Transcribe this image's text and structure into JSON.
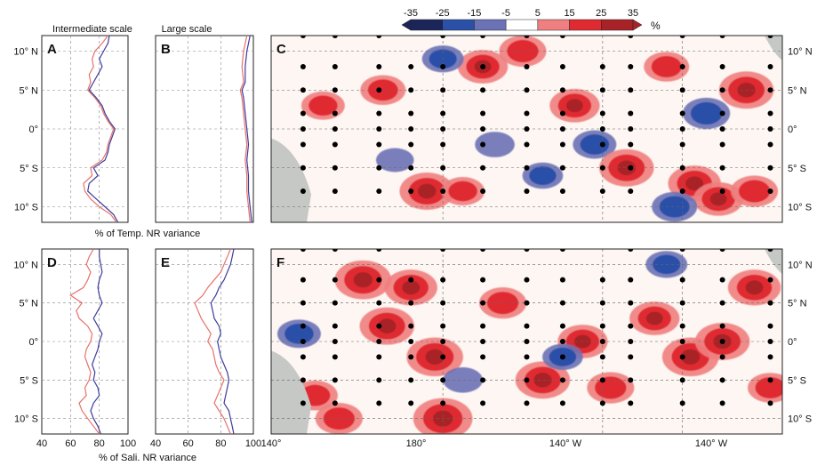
{
  "colorbar": {
    "ticks": [
      "-35",
      "-25",
      "-15",
      "-5",
      "5",
      "15",
      "25",
      "35"
    ],
    "unit": "%",
    "colors": [
      "#1c2559",
      "#2b50a8",
      "#6b72b5",
      "#ffffff",
      "#ef7f80",
      "#e02a32",
      "#a82228"
    ]
  },
  "colors": {
    "land": "#c6c8c6",
    "map_bg": "#fdf6f2",
    "intermediate_line_red": "#e8706a",
    "intermediate_line_blue": "#3c3c9c"
  },
  "titles": {
    "intermediate": "Intermediate scale",
    "large": "Large scale"
  },
  "panel_letters": {
    "A": "A",
    "B": "B",
    "C": "C",
    "D": "D",
    "E": "E",
    "F": "F"
  },
  "xlabels": {
    "temp": "% of Temp. NR variance",
    "sali": "% of Sali. NR variance"
  },
  "lat_ticks": [
    "10° N",
    "5° N",
    "0°",
    "5° S",
    "10° S"
  ],
  "lon_ticks": [
    "140°",
    "180°",
    "140° W",
    "140° W"
  ],
  "pct_ticks": [
    "40",
    "60",
    "80",
    "100"
  ],
  "chart_data": [
    {
      "panel": "A",
      "type": "line",
      "title": "Intermediate scale",
      "xlabel": "",
      "ylabel": "",
      "xlim": [
        40,
        100
      ],
      "ylim": [
        -12,
        12
      ],
      "series": [
        {
          "color": "red",
          "lat": [
            -12,
            -11,
            -10,
            -9,
            -8,
            -7,
            -6,
            -5,
            -4,
            -3,
            -2,
            -1,
            0,
            1,
            2,
            3,
            4,
            5,
            6,
            7,
            8,
            9,
            10,
            11,
            12
          ],
          "values": [
            92,
            88,
            80,
            74,
            70,
            69,
            75,
            74,
            82,
            85,
            86,
            88,
            90,
            86,
            83,
            81,
            77,
            72,
            74,
            73,
            76,
            75,
            77,
            82,
            86
          ]
        },
        {
          "color": "blue",
          "lat": [
            -12,
            -11,
            -10,
            -9,
            -8,
            -7,
            -6,
            -5,
            -4,
            -3,
            -2,
            -1,
            0,
            1,
            2,
            3,
            4,
            5,
            6,
            7,
            8,
            9,
            10,
            11,
            12
          ],
          "values": [
            93,
            90,
            84,
            78,
            72,
            73,
            79,
            76,
            84,
            86,
            87,
            89,
            91,
            87,
            84,
            82,
            78,
            73,
            76,
            79,
            82,
            80,
            83,
            86,
            87
          ]
        }
      ]
    },
    {
      "panel": "B",
      "type": "line",
      "title": "Large scale",
      "xlabel": "",
      "ylabel": "",
      "xlim": [
        40,
        100
      ],
      "ylim": [
        -12,
        12
      ],
      "series": [
        {
          "color": "red",
          "lat": [
            -12,
            -10,
            -8,
            -6,
            -4,
            -2,
            0,
            2,
            4,
            5,
            6,
            8,
            10,
            12
          ],
          "values": [
            98,
            97,
            96,
            96,
            95,
            96,
            95,
            94,
            93,
            92,
            94,
            93,
            94,
            96
          ]
        },
        {
          "color": "blue",
          "lat": [
            -12,
            -10,
            -8,
            -6,
            -4,
            -2,
            0,
            2,
            4,
            5,
            6,
            8,
            10,
            12
          ],
          "values": [
            99,
            98,
            97,
            97,
            96,
            97,
            96,
            95,
            94,
            93,
            95,
            95,
            96,
            98
          ]
        }
      ]
    },
    {
      "panel": "D",
      "type": "line",
      "title": "",
      "xlabel": "% of Sali. NR variance",
      "ylabel": "",
      "xlim": [
        40,
        100
      ],
      "ylim": [
        -12,
        12
      ],
      "series": [
        {
          "color": "red",
          "lat": [
            -12,
            -11,
            -10,
            -9,
            -8,
            -7,
            -6,
            -5,
            -4,
            -3,
            -2,
            -1,
            0,
            1,
            2,
            3,
            4,
            5,
            6,
            7,
            8,
            9,
            10,
            11,
            12
          ],
          "values": [
            80,
            76,
            72,
            68,
            66,
            71,
            70,
            73,
            74,
            72,
            70,
            71,
            74,
            75,
            72,
            66,
            64,
            68,
            60,
            69,
            72,
            74,
            71,
            73,
            76
          ]
        },
        {
          "color": "blue",
          "lat": [
            -12,
            -11,
            -10,
            -9,
            -8,
            -7,
            -6,
            -5,
            -4,
            -3,
            -2,
            -1,
            0,
            1,
            2,
            3,
            4,
            5,
            6,
            7,
            8,
            9,
            10,
            11,
            12
          ],
          "values": [
            81,
            79,
            76,
            74,
            76,
            80,
            79,
            76,
            77,
            75,
            77,
            79,
            80,
            82,
            79,
            76,
            79,
            82,
            80,
            79,
            80,
            82,
            81,
            80,
            80
          ]
        }
      ]
    },
    {
      "panel": "E",
      "type": "line",
      "title": "",
      "xlabel": "",
      "ylabel": "",
      "xlim": [
        40,
        100
      ],
      "ylim": [
        -12,
        12
      ],
      "series": [
        {
          "color": "red",
          "lat": [
            -12,
            -11,
            -10,
            -9,
            -8,
            -7,
            -6,
            -5,
            -4,
            -3,
            -2,
            -1,
            0,
            1,
            2,
            3,
            4,
            5,
            6,
            7,
            8,
            9,
            10,
            11,
            12
          ],
          "values": [
            86,
            84,
            82,
            79,
            76,
            78,
            80,
            82,
            79,
            77,
            76,
            75,
            72,
            74,
            71,
            68,
            66,
            64,
            69,
            72,
            76,
            80,
            82,
            84,
            86
          ]
        },
        {
          "color": "blue",
          "lat": [
            -12,
            -11,
            -10,
            -9,
            -8,
            -7,
            -6,
            -5,
            -4,
            -3,
            -2,
            -1,
            0,
            1,
            2,
            3,
            4,
            5,
            6,
            7,
            8,
            9,
            10,
            11,
            12
          ],
          "values": [
            88,
            87,
            86,
            85,
            82,
            83,
            84,
            85,
            84,
            82,
            80,
            79,
            78,
            80,
            79,
            76,
            75,
            74,
            77,
            79,
            82,
            84,
            86,
            87,
            88
          ]
        }
      ]
    },
    {
      "panel": "C",
      "type": "heatmap",
      "title": "",
      "xlabel": "",
      "ylabel": "",
      "xlim": [
        137,
        265
      ],
      "ylim": [
        -12,
        12
      ],
      "buoy_lons": [
        145,
        153,
        164,
        172,
        180,
        190,
        201,
        210,
        220,
        227,
        240,
        250,
        262
      ],
      "buoy_lats": [
        -8,
        -5,
        -2,
        0,
        2,
        5,
        8,
        12
      ],
      "blobs": [
        {
          "lon": 165,
          "lat": 5,
          "v": 20
        },
        {
          "lon": 176,
          "lat": -8,
          "v": 30
        },
        {
          "lon": 190,
          "lat": 8,
          "v": 25
        },
        {
          "lon": 200,
          "lat": 10,
          "v": 22
        },
        {
          "lon": 213,
          "lat": 3,
          "v": 25
        },
        {
          "lon": 218,
          "lat": -2,
          "v": -18
        },
        {
          "lon": 226,
          "lat": -5,
          "v": 30
        },
        {
          "lon": 236,
          "lat": 8,
          "v": 20
        },
        {
          "lon": 243,
          "lat": -7,
          "v": 28
        },
        {
          "lon": 249,
          "lat": -9,
          "v": 25
        },
        {
          "lon": 256,
          "lat": 5,
          "v": 30
        },
        {
          "lon": 150,
          "lat": 3,
          "v": 18
        },
        {
          "lon": 205,
          "lat": -6,
          "v": -15
        },
        {
          "lon": 193,
          "lat": -2,
          "v": -14
        },
        {
          "lon": 238,
          "lat": -10,
          "v": -20
        },
        {
          "lon": 168,
          "lat": -4,
          "v": -12
        },
        {
          "lon": 246,
          "lat": 2,
          "v": -22
        },
        {
          "lon": 185,
          "lat": -8,
          "v": 18
        },
        {
          "lon": 258,
          "lat": -8,
          "v": 22
        },
        {
          "lon": 180,
          "lat": 9,
          "v": -16
        }
      ]
    },
    {
      "panel": "F",
      "type": "heatmap",
      "title": "",
      "xlabel": "",
      "ylabel": "",
      "xlim": [
        137,
        265
      ],
      "ylim": [
        -12,
        12
      ],
      "buoy_lons": [
        145,
        153,
        164,
        172,
        180,
        190,
        201,
        210,
        220,
        227,
        240,
        250,
        262
      ],
      "buoy_lats": [
        -8,
        -5,
        -2,
        0,
        2,
        5,
        8,
        12
      ],
      "blobs": [
        {
          "lon": 160,
          "lat": 8,
          "v": 32
        },
        {
          "lon": 166,
          "lat": 2,
          "v": 30
        },
        {
          "lon": 178,
          "lat": -2,
          "v": 32
        },
        {
          "lon": 180,
          "lat": -10,
          "v": 35
        },
        {
          "lon": 172,
          "lat": 7,
          "v": 28
        },
        {
          "lon": 195,
          "lat": 5,
          "v": 22
        },
        {
          "lon": 205,
          "lat": -5,
          "v": 30
        },
        {
          "lon": 215,
          "lat": 0,
          "v": 25
        },
        {
          "lon": 222,
          "lat": -6,
          "v": 22
        },
        {
          "lon": 233,
          "lat": 3,
          "v": 25
        },
        {
          "lon": 242,
          "lat": -2,
          "v": 32
        },
        {
          "lon": 250,
          "lat": 0,
          "v": 30
        },
        {
          "lon": 258,
          "lat": 7,
          "v": 28
        },
        {
          "lon": 148,
          "lat": -7,
          "v": 20
        },
        {
          "lon": 144,
          "lat": 1,
          "v": -18
        },
        {
          "lon": 185,
          "lat": -5,
          "v": -14
        },
        {
          "lon": 210,
          "lat": -2,
          "v": -15
        },
        {
          "lon": 236,
          "lat": 10,
          "v": -16
        },
        {
          "lon": 262,
          "lat": -6,
          "v": 20
        },
        {
          "lon": 154,
          "lat": -10,
          "v": 22
        }
      ]
    }
  ]
}
